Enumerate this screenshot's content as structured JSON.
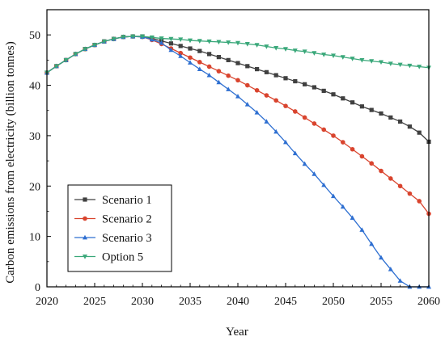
{
  "chart_data": {
    "type": "line",
    "title": "",
    "xlabel": "Year",
    "ylabel": "Carbon emissions from electricity (billion tonnes)",
    "xlim": [
      2020,
      2060
    ],
    "ylim": [
      0,
      55
    ],
    "xticks": [
      "2020",
      "2025",
      "2030",
      "2035",
      "2040",
      "2045",
      "2050",
      "2055",
      "2060"
    ],
    "yticks": [
      "0",
      "10",
      "20",
      "30",
      "40",
      "50"
    ],
    "grid": false,
    "legend_position": "bottom-left",
    "series": [
      {
        "name": "Scenario 1",
        "color": "#404040",
        "marker": "square",
        "x": [
          2020,
          2021,
          2022,
          2023,
          2024,
          2025,
          2026,
          2027,
          2028,
          2029,
          2030,
          2031,
          2032,
          2033,
          2034,
          2035,
          2036,
          2037,
          2038,
          2039,
          2040,
          2041,
          2042,
          2043,
          2044,
          2045,
          2046,
          2047,
          2048,
          2049,
          2050,
          2051,
          2052,
          2053,
          2054,
          2055,
          2056,
          2057,
          2058,
          2059,
          2060
        ],
        "values": [
          42.5,
          43.8,
          45.0,
          46.2,
          47.2,
          48.0,
          48.7,
          49.2,
          49.6,
          49.7,
          49.7,
          49.3,
          48.8,
          48.3,
          47.8,
          47.3,
          46.8,
          46.2,
          45.6,
          45.0,
          44.4,
          43.8,
          43.2,
          42.6,
          42.0,
          41.4,
          40.8,
          40.2,
          39.6,
          38.9,
          38.2,
          37.4,
          36.6,
          35.8,
          35.1,
          34.4,
          33.6,
          32.8,
          31.8,
          30.6,
          28.8
        ]
      },
      {
        "name": "Scenario 2",
        "color": "#d9442e",
        "marker": "circle",
        "x": [
          2020,
          2021,
          2022,
          2023,
          2024,
          2025,
          2026,
          2027,
          2028,
          2029,
          2030,
          2031,
          2032,
          2033,
          2034,
          2035,
          2036,
          2037,
          2038,
          2039,
          2040,
          2041,
          2042,
          2043,
          2044,
          2045,
          2046,
          2047,
          2048,
          2049,
          2050,
          2051,
          2052,
          2053,
          2054,
          2055,
          2056,
          2057,
          2058,
          2059,
          2060
        ],
        "values": [
          42.5,
          43.8,
          45.0,
          46.2,
          47.2,
          48.0,
          48.7,
          49.2,
          49.6,
          49.7,
          49.6,
          49.0,
          48.2,
          47.3,
          46.4,
          45.5,
          44.6,
          43.7,
          42.8,
          41.9,
          41.0,
          40.0,
          39.0,
          38.0,
          37.0,
          35.9,
          34.8,
          33.6,
          32.4,
          31.2,
          30.0,
          28.7,
          27.3,
          25.9,
          24.5,
          23.0,
          21.5,
          20.0,
          18.5,
          17.0,
          14.5
        ]
      },
      {
        "name": "Scenario 3",
        "color": "#2e6fd1",
        "marker": "triangle-up",
        "x": [
          2020,
          2021,
          2022,
          2023,
          2024,
          2025,
          2026,
          2027,
          2028,
          2029,
          2030,
          2031,
          2032,
          2033,
          2034,
          2035,
          2036,
          2037,
          2038,
          2039,
          2040,
          2041,
          2042,
          2043,
          2044,
          2045,
          2046,
          2047,
          2048,
          2049,
          2050,
          2051,
          2052,
          2053,
          2054,
          2055,
          2056,
          2057,
          2058,
          2059,
          2060
        ],
        "values": [
          42.5,
          43.8,
          45.0,
          46.2,
          47.2,
          48.0,
          48.7,
          49.2,
          49.6,
          49.7,
          49.6,
          49.1,
          48.4,
          47.0,
          45.8,
          44.5,
          43.2,
          42.0,
          40.6,
          39.2,
          37.8,
          36.2,
          34.6,
          32.8,
          30.8,
          28.7,
          26.5,
          24.4,
          22.4,
          20.2,
          18.0,
          15.9,
          13.7,
          11.3,
          8.5,
          5.8,
          3.5,
          1.2,
          0.0,
          0.0,
          0.0
        ]
      },
      {
        "name": "Option 5",
        "color": "#3aa87a",
        "marker": "triangle-down",
        "x": [
          2020,
          2021,
          2022,
          2023,
          2024,
          2025,
          2026,
          2027,
          2028,
          2029,
          2030,
          2031,
          2032,
          2033,
          2034,
          2035,
          2036,
          2037,
          2038,
          2039,
          2040,
          2041,
          2042,
          2043,
          2044,
          2045,
          2046,
          2047,
          2048,
          2049,
          2050,
          2051,
          2052,
          2053,
          2054,
          2055,
          2056,
          2057,
          2058,
          2059,
          2060
        ],
        "values": [
          42.5,
          43.8,
          45.0,
          46.2,
          47.2,
          48.0,
          48.7,
          49.2,
          49.6,
          49.7,
          49.7,
          49.5,
          49.3,
          49.2,
          49.1,
          48.9,
          48.8,
          48.7,
          48.6,
          48.5,
          48.4,
          48.2,
          48.0,
          47.7,
          47.4,
          47.2,
          46.9,
          46.7,
          46.4,
          46.1,
          45.9,
          45.6,
          45.3,
          45.0,
          44.8,
          44.6,
          44.3,
          44.1,
          43.9,
          43.7,
          43.5
        ]
      }
    ]
  }
}
